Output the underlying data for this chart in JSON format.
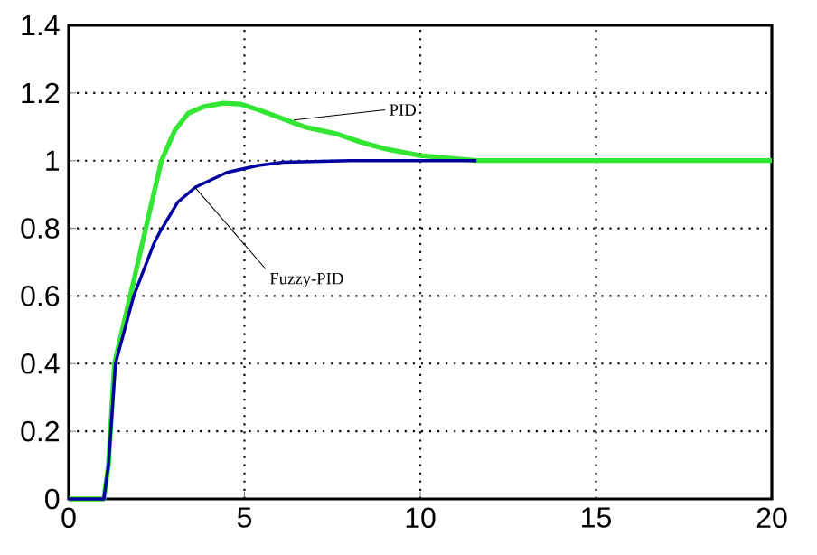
{
  "chart_data": {
    "type": "line",
    "xlim": [
      0,
      20
    ],
    "ylim": [
      0,
      1.4
    ],
    "xticks": [
      0,
      5,
      10,
      15,
      20
    ],
    "yticks": [
      0,
      0.2,
      0.4,
      0.6,
      0.8,
      1,
      1.2,
      1.4
    ],
    "grid": true,
    "line_style": "solid",
    "marker": "none",
    "series": [
      {
        "color": "#33e633",
        "x": [
          0,
          1,
          1.13,
          1.3,
          1.75,
          2.17,
          2.64,
          3.02,
          3.4,
          3.86,
          4.4,
          4.9,
          5.4,
          5.93,
          6.7,
          7.6,
          8.3,
          9.0,
          10.0,
          11.6,
          15,
          20
        ],
        "values": [
          0,
          0,
          0.1,
          0.4,
          0.6,
          0.79,
          1.0,
          1.09,
          1.14,
          1.16,
          1.17,
          1.167,
          1.15,
          1.13,
          1.1,
          1.08,
          1.055,
          1.035,
          1.015,
          1.0,
          1.0,
          1.0
        ]
      },
      {
        "color": "#0000a0",
        "x": [
          0,
          1,
          1.13,
          1.33,
          1.85,
          2.42,
          2.6,
          3.1,
          3.6,
          4.5,
          5.4,
          6.1,
          8,
          11.6
        ],
        "values": [
          0,
          0,
          0.1,
          0.4,
          0.6,
          0.754,
          0.79,
          0.877,
          0.921,
          0.965,
          0.986,
          0.995,
          1.0,
          1.0
        ]
      }
    ],
    "annotations": [
      {
        "text": "PID",
        "x": 6.4,
        "y": 1.12
      },
      {
        "text": "Fuzzy-PID",
        "x": 3.6,
        "y": 0.92
      }
    ]
  }
}
